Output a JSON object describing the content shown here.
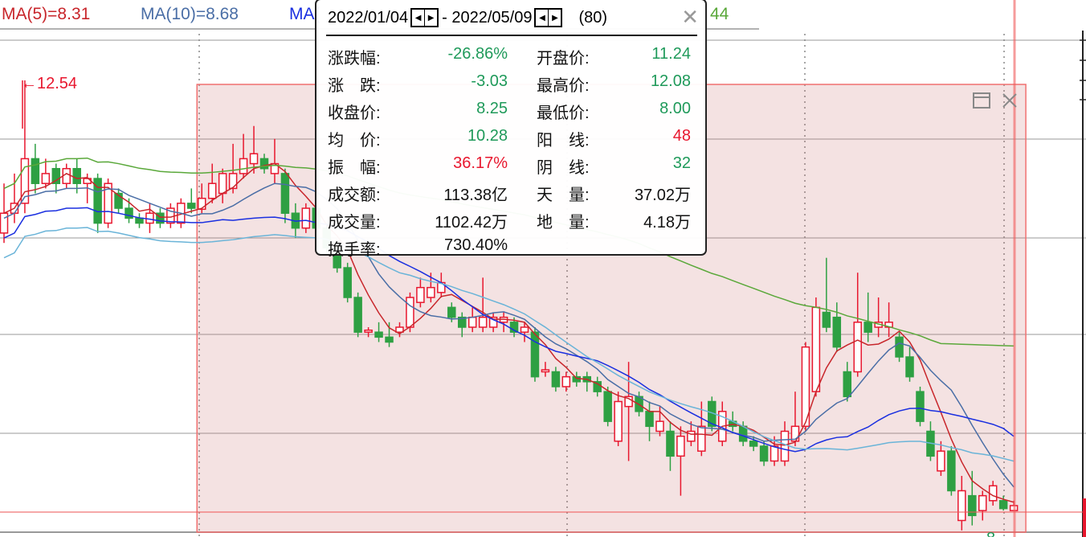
{
  "legend": [
    {
      "text": "MA(5)=8.31",
      "color": "#c8262b"
    },
    {
      "text": "MA(10)=8.68",
      "color": "#4a6ea6"
    },
    {
      "text": "MA(",
      "color": "#1a2fe0"
    },
    {
      "text": "44",
      "color": "#5aa83a"
    }
  ],
  "tooltip": {
    "start_date": "2022/01/04",
    "end_date": "2022/05/09",
    "count": "(80)",
    "separator": "-",
    "left": [
      {
        "label": "涨跌幅:",
        "value": "-26.86%",
        "color": "green"
      },
      {
        "label": "涨　跌:",
        "value": "-3.03",
        "color": "green"
      },
      {
        "label": "收盘价:",
        "value": "8.25",
        "color": "green"
      },
      {
        "label": "均　价:",
        "value": "10.28",
        "color": "green"
      },
      {
        "label": "振　幅:",
        "value": "36.17%",
        "color": "red"
      },
      {
        "label": "成交额:",
        "value": "113.38亿",
        "color": "black"
      },
      {
        "label": "成交量:",
        "value": "1102.42万",
        "color": "black"
      },
      {
        "label": "换手率:",
        "value": "730.40%",
        "color": "black"
      }
    ],
    "right": [
      {
        "label": "开盘价:",
        "value": "11.24",
        "color": "green"
      },
      {
        "label": "最高价:",
        "value": "12.08",
        "color": "green"
      },
      {
        "label": "最低价:",
        "value": "8.00",
        "color": "green"
      },
      {
        "label": "阳　线:",
        "value": "48",
        "color": "red"
      },
      {
        "label": "阴　线:",
        "value": "32",
        "color": "green"
      },
      {
        "label": "天　量:",
        "value": "37.02万",
        "color": "black"
      },
      {
        "label": "地　量:",
        "value": "4.18万",
        "color": "black"
      }
    ]
  },
  "chart_data": {
    "type": "candlestick",
    "annotations": {
      "high_label": "←12.54",
      "low_label": "←8"
    },
    "colors": {
      "up": "#e8172e",
      "down": "#2ea043",
      "ma5": "#c8262b",
      "ma10": "#4a6ea6",
      "ma20": "#1a2fe0",
      "ma30": "#6ab4d8",
      "ma60": "#5aa83a",
      "selection": "#f07070"
    },
    "selection": {
      "start_index": 19,
      "end_index": 98
    },
    "ohlc": [
      [
        11.0,
        11.5,
        10.9,
        11.2
      ],
      [
        11.2,
        11.6,
        11.1,
        11.3
      ],
      [
        11.3,
        12.54,
        11.2,
        11.75
      ],
      [
        11.75,
        11.9,
        11.4,
        11.5
      ],
      [
        11.5,
        11.75,
        11.45,
        11.6
      ],
      [
        11.65,
        11.7,
        11.4,
        11.5
      ],
      [
        11.5,
        11.7,
        11.45,
        11.65
      ],
      [
        11.65,
        11.75,
        11.4,
        11.5
      ],
      [
        11.5,
        11.6,
        11.3,
        11.55
      ],
      [
        11.55,
        11.6,
        11.0,
        11.1
      ],
      [
        11.1,
        11.55,
        11.05,
        11.5
      ],
      [
        11.4,
        11.45,
        11.2,
        11.25
      ],
      [
        11.25,
        11.35,
        11.1,
        11.15
      ],
      [
        11.15,
        11.2,
        11.05,
        11.1
      ],
      [
        11.1,
        11.3,
        11.0,
        11.2
      ],
      [
        11.2,
        11.25,
        11.05,
        11.1
      ],
      [
        11.1,
        11.3,
        11.05,
        11.25
      ],
      [
        11.1,
        11.35,
        11.05,
        11.3
      ],
      [
        11.3,
        11.45,
        11.2,
        11.25
      ],
      [
        11.24,
        11.5,
        11.2,
        11.35
      ],
      [
        11.35,
        11.7,
        11.3,
        11.5
      ],
      [
        11.4,
        11.65,
        11.3,
        11.6
      ],
      [
        11.45,
        11.9,
        11.4,
        11.6
      ],
      [
        11.6,
        12.0,
        11.55,
        11.75
      ],
      [
        11.7,
        12.08,
        11.6,
        11.8
      ],
      [
        11.75,
        11.8,
        11.6,
        11.65
      ],
      [
        11.6,
        11.95,
        11.5,
        11.7
      ],
      [
        11.6,
        11.65,
        11.1,
        11.2
      ],
      [
        11.2,
        11.3,
        10.95,
        11.05
      ],
      [
        11.05,
        11.3,
        11.0,
        11.25
      ],
      [
        11.25,
        11.3,
        11.0,
        11.05
      ],
      [
        11.05,
        11.1,
        10.8,
        10.85
      ],
      [
        10.85,
        10.9,
        10.6,
        10.65
      ],
      [
        10.65,
        10.7,
        10.3,
        10.35
      ],
      [
        10.35,
        10.4,
        9.95,
        10.0
      ],
      [
        10.0,
        10.05,
        9.95,
        10.02
      ],
      [
        10.0,
        10.1,
        9.9,
        9.95
      ],
      [
        9.95,
        10.1,
        9.85,
        9.9
      ],
      [
        10.0,
        10.1,
        9.95,
        10.05
      ],
      [
        10.05,
        10.4,
        10.0,
        10.35
      ],
      [
        10.3,
        10.55,
        10.25,
        10.45
      ],
      [
        10.35,
        10.6,
        10.3,
        10.45
      ],
      [
        10.4,
        10.6,
        10.35,
        10.5
      ],
      [
        10.25,
        10.3,
        10.1,
        10.15
      ],
      [
        10.15,
        10.2,
        9.95,
        10.05
      ],
      [
        10.05,
        10.25,
        10.0,
        10.15
      ],
      [
        10.05,
        10.55,
        10.0,
        10.15
      ],
      [
        10.05,
        10.2,
        10.0,
        10.15
      ],
      [
        10.1,
        10.2,
        10.0,
        10.15
      ],
      [
        10.1,
        10.15,
        9.95,
        10.0
      ],
      [
        10.0,
        10.1,
        9.9,
        10.05
      ],
      [
        10.0,
        10.05,
        9.5,
        9.55
      ],
      [
        9.6,
        9.7,
        9.55,
        9.62
      ],
      [
        9.6,
        9.65,
        9.4,
        9.45
      ],
      [
        9.45,
        9.6,
        9.4,
        9.55
      ],
      [
        9.55,
        9.6,
        9.45,
        9.5
      ],
      [
        9.55,
        9.6,
        9.4,
        9.5
      ],
      [
        9.5,
        9.55,
        9.35,
        9.4
      ],
      [
        9.4,
        9.45,
        9.05,
        9.1
      ],
      [
        8.9,
        9.4,
        8.85,
        9.3
      ],
      [
        9.25,
        9.7,
        8.7,
        9.35
      ],
      [
        9.35,
        9.4,
        9.15,
        9.2
      ],
      [
        9.2,
        9.3,
        8.9,
        9.05
      ],
      [
        9.0,
        9.25,
        8.95,
        9.1
      ],
      [
        9.0,
        9.1,
        8.6,
        8.75
      ],
      [
        8.75,
        9.05,
        8.35,
        8.95
      ],
      [
        8.9,
        9.1,
        8.85,
        9.0
      ],
      [
        8.8,
        9.3,
        8.75,
        9.05
      ],
      [
        9.3,
        9.35,
        9.0,
        9.05
      ],
      [
        8.9,
        9.3,
        8.85,
        9.2
      ],
      [
        9.1,
        9.2,
        9.0,
        9.05
      ],
      [
        9.05,
        9.1,
        8.85,
        8.9
      ],
      [
        8.9,
        8.95,
        8.8,
        8.85
      ],
      [
        8.85,
        8.9,
        8.65,
        8.7
      ],
      [
        8.7,
        8.95,
        8.65,
        8.85
      ],
      [
        8.7,
        9.1,
        8.65,
        9.0
      ],
      [
        8.9,
        9.4,
        8.85,
        9.05
      ],
      [
        9.05,
        9.9,
        9.0,
        9.85
      ],
      [
        9.4,
        10.35,
        9.35,
        10.25
      ],
      [
        10.2,
        10.75,
        10.0,
        10.05
      ],
      [
        10.15,
        10.3,
        9.8,
        9.85
      ],
      [
        9.6,
        9.7,
        9.3,
        9.35
      ],
      [
        9.6,
        10.6,
        9.55,
        10.1
      ],
      [
        10.1,
        10.4,
        9.9,
        10.0
      ],
      [
        10.05,
        10.35,
        9.95,
        10.1
      ],
      [
        10.05,
        10.3,
        9.95,
        10.1
      ],
      [
        9.95,
        10.0,
        9.7,
        9.75
      ],
      [
        9.75,
        9.85,
        9.5,
        9.55
      ],
      [
        9.4,
        9.45,
        9.05,
        9.1
      ],
      [
        9.0,
        9.1,
        8.7,
        8.75
      ],
      [
        8.6,
        8.9,
        8.55,
        8.8
      ],
      [
        8.8,
        8.85,
        8.35,
        8.4
      ],
      [
        8.1,
        8.55,
        8.0,
        8.4
      ],
      [
        8.35,
        8.6,
        8.05,
        8.15
      ],
      [
        8.2,
        8.4,
        8.1,
        8.35
      ],
      [
        8.3,
        8.5,
        8.25,
        8.45
      ],
      [
        8.3,
        8.35,
        8.2,
        8.22
      ],
      [
        8.2,
        8.3,
        8.2,
        8.25
      ]
    ]
  }
}
